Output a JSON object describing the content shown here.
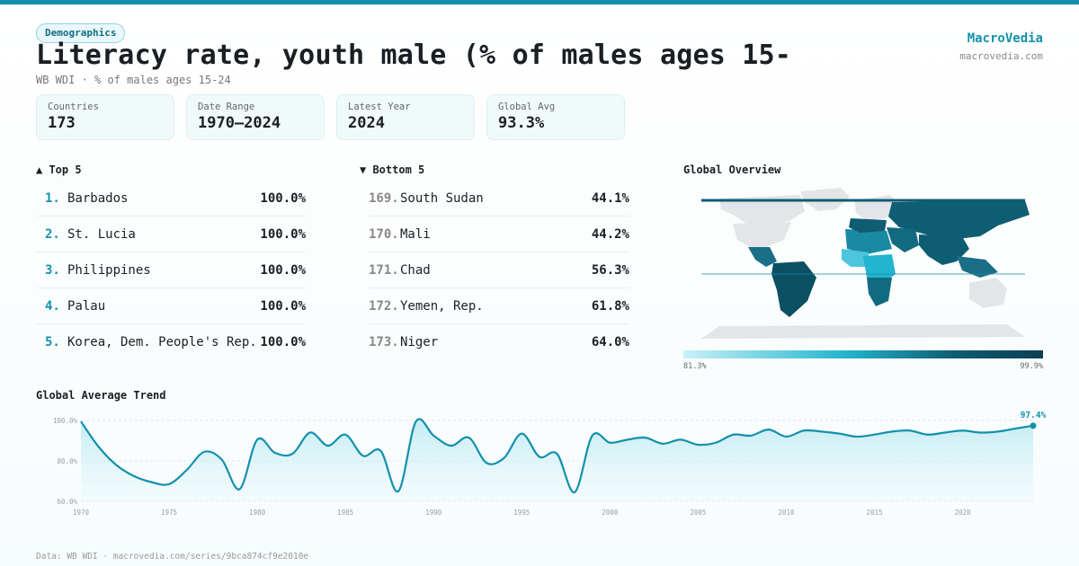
{
  "badge": "Demographics",
  "title": "Literacy rate, youth male (% of males ages 15-",
  "subtitle": "WB WDI · % of males ages 15-24",
  "brand": {
    "name": "MacroVedia",
    "url": "macrovedia.com"
  },
  "stats": [
    {
      "label": "Countries",
      "value": "173"
    },
    {
      "label": "Date Range",
      "value": "1970–2024"
    },
    {
      "label": "Latest Year",
      "value": "2024"
    },
    {
      "label": "Global Avg",
      "value": "93.3%"
    }
  ],
  "top5": {
    "title": "▲ Top 5",
    "rows": [
      {
        "rank": "1.",
        "name": "Barbados",
        "value": "100.0%"
      },
      {
        "rank": "2.",
        "name": "St. Lucia",
        "value": "100.0%"
      },
      {
        "rank": "3.",
        "name": "Philippines",
        "value": "100.0%"
      },
      {
        "rank": "4.",
        "name": "Palau",
        "value": "100.0%"
      },
      {
        "rank": "5.",
        "name": "Korea, Dem. People's Rep.",
        "value": "100.0%"
      }
    ]
  },
  "bottom5": {
    "title": "▼ Bottom 5",
    "rows": [
      {
        "rank": "169.",
        "name": "South Sudan",
        "value": "44.1%"
      },
      {
        "rank": "170.",
        "name": "Mali",
        "value": "44.2%"
      },
      {
        "rank": "171.",
        "name": "Chad",
        "value": "56.3%"
      },
      {
        "rank": "172.",
        "name": "Yemen, Rep.",
        "value": "61.8%"
      },
      {
        "rank": "173.",
        "name": "Niger",
        "value": "64.0%"
      }
    ]
  },
  "map": {
    "title": "Global Overview",
    "legend_min": "81.3%",
    "legend_max": "99.9%",
    "colors": {
      "low": "#c9f1f8",
      "mid": "#23b5cf",
      "high": "#0b3f52",
      "nodata": "#e3e5e8"
    }
  },
  "trend_title": "Global Average Trend",
  "chart_data": {
    "type": "area",
    "title": "Global Average Trend",
    "x": [
      1970,
      1971,
      1972,
      1973,
      1974,
      1975,
      1976,
      1977,
      1978,
      1979,
      1980,
      1981,
      1982,
      1983,
      1984,
      1985,
      1986,
      1987,
      1988,
      1989,
      1990,
      1991,
      1992,
      1993,
      1994,
      1995,
      1996,
      1997,
      1998,
      1999,
      2000,
      2001,
      2002,
      2003,
      2004,
      2005,
      2006,
      2007,
      2008,
      2009,
      2010,
      2011,
      2012,
      2013,
      2014,
      2015,
      2016,
      2017,
      2018,
      2019,
      2020,
      2021,
      2022,
      2023,
      2024
    ],
    "values": [
      99.5,
      87.0,
      78.0,
      72.5,
      69.5,
      68.5,
      75.5,
      84.5,
      80.5,
      66.0,
      90.5,
      84.0,
      83.5,
      94.0,
      87.5,
      93.0,
      82.5,
      85.0,
      65.0,
      99.5,
      92.5,
      87.5,
      91.5,
      79.0,
      81.5,
      93.5,
      82.0,
      83.5,
      64.5,
      92.5,
      89.0,
      90.5,
      91.5,
      88.5,
      90.5,
      88.0,
      89.0,
      93.0,
      92.5,
      95.5,
      92.0,
      95.0,
      94.5,
      93.5,
      92.0,
      93.0,
      94.5,
      95.0,
      93.0,
      94.0,
      95.0,
      94.0,
      94.5,
      96.0,
      97.4
    ],
    "ylim": [
      60,
      100
    ],
    "y_ticks": [
      "60.0%",
      "80.0%",
      "100.0%"
    ],
    "x_ticks": [
      "1970",
      "1975",
      "1980",
      "1985",
      "1990",
      "1995",
      "2000",
      "2005",
      "2010",
      "2015",
      "2020"
    ],
    "last_label": "97.4%",
    "grid": true,
    "color": "#1291ad"
  },
  "footer": "Data: WB WDI · macrovedia.com/series/9bca874cf9e2010e"
}
